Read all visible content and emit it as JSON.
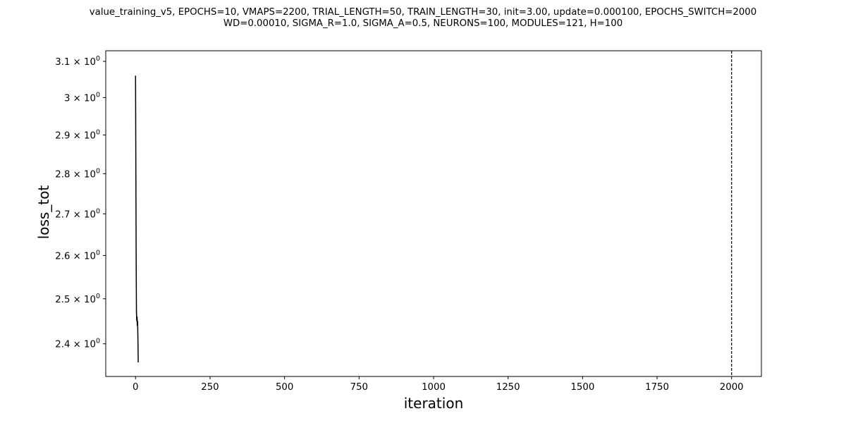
{
  "chart_data": {
    "type": "line",
    "title_lines": [
      "value_training_v5, EPOCHS=10, VMAPS=2200, TRIAL_LENGTH=50, TRAIN_LENGTH=30, init=3.00, update=0.000100, EPOCHS_SWITCH=2000",
      "WD=0.00010, SIGMA_R=1.0, SIGMA_A=0.5, NEURONS=100, MODULES=121, H=100"
    ],
    "xlabel": "iteration",
    "ylabel": "loss_tot",
    "xlim": [
      -100,
      2100
    ],
    "ylim": [
      2.33,
      3.13
    ],
    "yscale": "log",
    "x_ticks": [
      0,
      250,
      500,
      750,
      1000,
      1250,
      1500,
      1750,
      2000
    ],
    "x_tick_labels": [
      "0",
      "250",
      "500",
      "750",
      "1000",
      "1250",
      "1500",
      "1750",
      "2000"
    ],
    "y_ticks": [
      2.4,
      2.5,
      2.6,
      2.7,
      2.8,
      2.9,
      3.0,
      3.1
    ],
    "y_tick_mantissas": [
      "2.4",
      "2.5",
      "2.6",
      "2.7",
      "2.8",
      "2.9",
      "3",
      "3.1"
    ],
    "y_tick_base": "10",
    "y_tick_exp": "0",
    "series": [
      {
        "x": [
          0,
          1,
          2,
          3,
          4,
          5,
          6,
          7,
          8,
          9
        ],
        "y": [
          3.06,
          2.82,
          2.6,
          2.47,
          2.45,
          2.46,
          2.44,
          2.45,
          2.41,
          2.36
        ],
        "y_upper": [
          3.08,
          2.85,
          2.63,
          2.5,
          2.47,
          2.48,
          2.46,
          2.47,
          2.43,
          2.38
        ],
        "y_lower": [
          3.04,
          2.79,
          2.57,
          2.44,
          2.43,
          2.44,
          2.42,
          2.43,
          2.39,
          2.34
        ],
        "color": "#000000",
        "band_color": "#bbbbbb"
      }
    ],
    "vline": {
      "x": 2000,
      "style": "dashed",
      "color": "#000000"
    },
    "grid": false
  }
}
